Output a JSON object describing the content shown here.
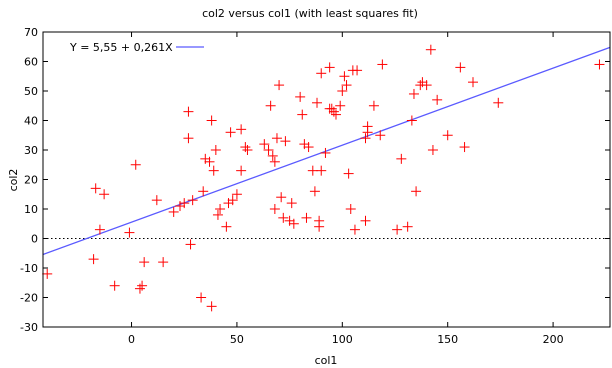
{
  "chart_data": {
    "type": "scatter",
    "title": "col2 versus col1 (with least squares fit)",
    "xlabel": "col1",
    "ylabel": "col2",
    "xlim": [
      -42,
      227
    ],
    "ylim": [
      -30,
      70
    ],
    "xticks": [
      0,
      50,
      100,
      150,
      200
    ],
    "yticks": [
      -30,
      -20,
      -10,
      0,
      10,
      20,
      30,
      40,
      50,
      60,
      70
    ],
    "grid": false,
    "zero_line": true,
    "legend_position": "top-left",
    "colors": {
      "points": "#ff0000",
      "fit": "#5a5aff",
      "axis": "#000000"
    },
    "series": [
      {
        "name": "",
        "marker": "plus",
        "x": [
          -40,
          -18,
          -17,
          -15,
          -13,
          -8,
          -1,
          2,
          4,
          5,
          6,
          12,
          15,
          20,
          23,
          25,
          27,
          27,
          28,
          29,
          33,
          34,
          35,
          37,
          38,
          38,
          39,
          40,
          41,
          42,
          45,
          46,
          47,
          48,
          50,
          52,
          52,
          54,
          55,
          63,
          65,
          66,
          67,
          68,
          68,
          69,
          70,
          71,
          72,
          73,
          75,
          76,
          77,
          80,
          81,
          82,
          83,
          84,
          86,
          87,
          88,
          89,
          89,
          90,
          90,
          92,
          94,
          94,
          95,
          96,
          97,
          99,
          100,
          101,
          102,
          103,
          104,
          105,
          106,
          107,
          111,
          111,
          112,
          112,
          115,
          118,
          119,
          126,
          128,
          131,
          133,
          134,
          135,
          137,
          138,
          140,
          142,
          143,
          145,
          150,
          156,
          158,
          162,
          174,
          222
        ],
        "y": [
          -12,
          -7,
          17,
          3,
          15,
          -16,
          2,
          25,
          -17,
          -16,
          -8,
          13,
          -8,
          9,
          11,
          12,
          43,
          34,
          -2,
          13,
          -20,
          16,
          27,
          26,
          -23,
          40,
          23,
          30,
          8,
          10,
          4,
          12,
          36,
          13,
          15,
          23,
          37,
          31,
          30,
          32,
          30,
          45,
          28,
          26,
          10,
          34,
          52,
          14,
          7,
          33,
          6,
          12,
          5,
          48,
          42,
          32,
          7,
          31,
          23,
          16,
          46,
          6,
          4,
          23,
          56,
          29,
          58,
          44,
          44,
          43,
          42,
          45,
          50,
          55,
          52,
          22,
          10,
          57,
          3,
          57,
          6,
          34,
          36,
          38,
          45,
          35,
          59,
          3,
          27,
          4,
          40,
          49,
          16,
          52,
          53,
          52,
          64,
          30,
          47,
          35,
          58,
          31,
          53,
          46,
          59
        ]
      }
    ],
    "fit": {
      "name": "Y = 5,55 + 0,261X",
      "intercept": 5.55,
      "slope": 0.261
    }
  }
}
